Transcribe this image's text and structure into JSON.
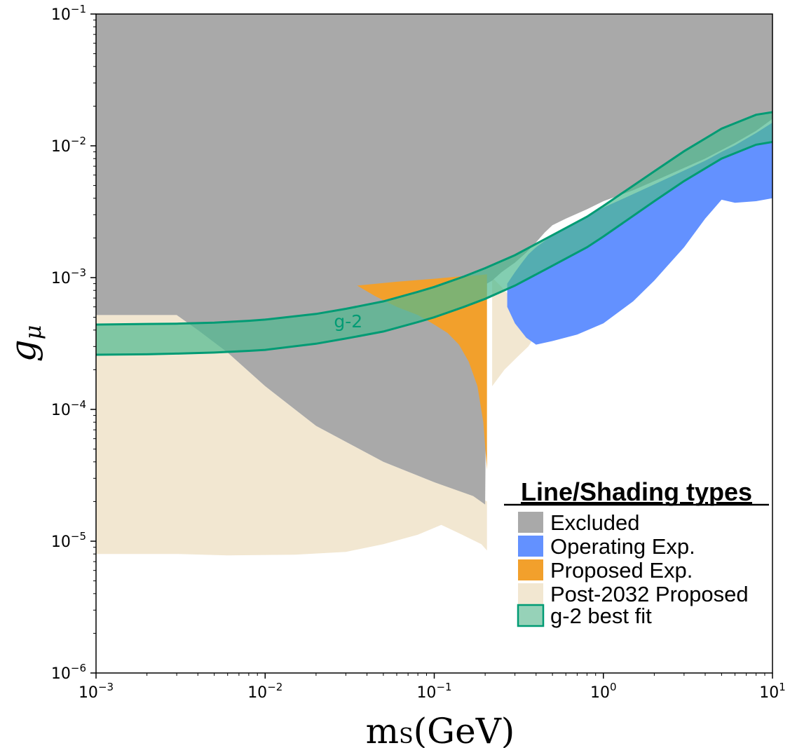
{
  "chart_data": {
    "type": "area",
    "title": "",
    "xlabel": "m",
    "xlabel_sub": "S",
    "xlabel_unit": "(GeV)",
    "ylabel": "g",
    "ylabel_sub": "μ",
    "xscale": "log",
    "yscale": "log",
    "xlim": [
      0.001,
      10
    ],
    "ylim": [
      1e-06,
      0.1
    ],
    "grid": false,
    "x_ticks": [
      {
        "base": "10",
        "exp": "−3",
        "value": 0.001
      },
      {
        "base": "10",
        "exp": "−2",
        "value": 0.01
      },
      {
        "base": "10",
        "exp": "−1",
        "value": 0.1
      },
      {
        "base": "10",
        "exp": "0",
        "value": 1
      },
      {
        "base": "10",
        "exp": "1",
        "value": 10
      }
    ],
    "y_ticks": [
      {
        "base": "10",
        "exp": "−6",
        "value": 1e-06
      },
      {
        "base": "10",
        "exp": "−5",
        "value": 1e-05
      },
      {
        "base": "10",
        "exp": "−4",
        "value": 0.0001
      },
      {
        "base": "10",
        "exp": "−3",
        "value": 0.001
      },
      {
        "base": "10",
        "exp": "−2",
        "value": 0.01
      },
      {
        "base": "10",
        "exp": "−1",
        "value": 0.1
      }
    ],
    "legend": {
      "title": "Line/Shading types",
      "placement": "lower-right",
      "entries": [
        {
          "label": "Excluded",
          "color": "#a9a9a9",
          "outline": ""
        },
        {
          "label": "Operating Exp.",
          "color": "#6391ff",
          "outline": ""
        },
        {
          "label": "Proposed Exp.",
          "color": "#f2a02c",
          "outline": ""
        },
        {
          "label": "Post-2032 Proposed",
          "color": "#f2e7d1",
          "outline": ""
        },
        {
          "label": "g-2 best fit",
          "color": "#96d2b8",
          "outline": "#009b74"
        }
      ]
    },
    "regions": [
      {
        "key": "postproposed",
        "color": "#f2e7d1",
        "opacity": 1,
        "polygons": [
          [
            [
              0.001,
              8e-06
            ],
            [
              0.003,
              8e-06
            ],
            [
              0.006,
              7.8e-06
            ],
            [
              0.015,
              7.9e-06
            ],
            [
              0.03,
              8.3e-06
            ],
            [
              0.05,
              9.5e-06
            ],
            [
              0.08,
              1.12e-05
            ],
            [
              0.11,
              1.33e-05
            ],
            [
              0.14,
              1.15e-05
            ],
            [
              0.19,
              9.5e-06
            ],
            [
              0.205,
              8.5e-06
            ],
            [
              0.205,
              2e-05
            ],
            [
              0.17,
              2.3e-05
            ],
            [
              0.1,
              2.8e-05
            ],
            [
              0.05,
              4e-05
            ],
            [
              0.02,
              7.5e-05
            ],
            [
              0.01,
              0.00015
            ],
            [
              0.006,
              0.00027
            ],
            [
              0.004,
              0.0004
            ],
            [
              0.003,
              0.00052
            ],
            [
              0.001,
              0.00052
            ]
          ],
          [
            [
              0.22,
              0.00015
            ],
            [
              0.26,
              0.0002
            ],
            [
              0.31,
              0.00025
            ],
            [
              0.36,
              0.0003
            ],
            [
              0.4,
              0.00037
            ],
            [
              0.36,
              0.00048
            ],
            [
              0.3,
              0.00065
            ],
            [
              0.25,
              0.00085
            ],
            [
              0.22,
              0.001
            ]
          ]
        ]
      },
      {
        "key": "excluded",
        "color": "#a9a9a9",
        "opacity": 1,
        "polygons": [
          [
            [
              0.001,
              0.1
            ],
            [
              10,
              0.1
            ],
            [
              10,
              0.016
            ],
            [
              8,
              0.013
            ],
            [
              6,
              0.0105
            ],
            [
              4,
              0.008
            ],
            [
              3,
              0.0068
            ],
            [
              2,
              0.0054
            ],
            [
              1.5,
              0.0046
            ],
            [
              1,
              0.0038
            ],
            [
              0.8,
              0.0033
            ],
            [
              0.6,
              0.0028
            ],
            [
              0.5,
              0.0025
            ],
            [
              0.45,
              0.0022
            ],
            [
              0.4,
              0.00185
            ],
            [
              0.35,
              0.00155
            ],
            [
              0.3,
              0.0013
            ],
            [
              0.25,
              0.0011
            ],
            [
              0.22,
              0.00095
            ],
            [
              0.205,
              0.0009
            ],
            [
              0.2,
              1.9e-05
            ],
            [
              0.17,
              2.2e-05
            ],
            [
              0.1,
              2.8e-05
            ],
            [
              0.05,
              4e-05
            ],
            [
              0.02,
              7.5e-05
            ],
            [
              0.01,
              0.00015
            ],
            [
              0.006,
              0.00027
            ],
            [
              0.004,
              0.0004
            ],
            [
              0.003,
              0.00052
            ],
            [
              0.001,
              0.00052
            ]
          ]
        ]
      },
      {
        "key": "proposed",
        "color": "#f2a02c",
        "opacity": 1,
        "polygons": [
          [
            [
              0.035,
              0.00087
            ],
            [
              0.06,
              0.00093
            ],
            [
              0.1,
              0.00098
            ],
            [
              0.14,
              0.00102
            ],
            [
              0.18,
              0.00104
            ],
            [
              0.205,
              0.00106
            ],
            [
              0.205,
              3.5e-05
            ],
            [
              0.195,
              8e-05
            ],
            [
              0.18,
              0.00015
            ],
            [
              0.16,
              0.00023
            ],
            [
              0.14,
              0.00031
            ],
            [
              0.12,
              0.00038
            ],
            [
              0.1,
              0.00044
            ],
            [
              0.08,
              0.00052
            ],
            [
              0.06,
              0.0006
            ],
            [
              0.045,
              0.00072
            ]
          ]
        ]
      },
      {
        "key": "operating",
        "color": "#6391ff",
        "opacity": 1,
        "polygons": [
          [
            [
              0.27,
              0.0009
            ],
            [
              0.3,
              0.0011
            ],
            [
              0.33,
              0.0013
            ],
            [
              0.36,
              0.0015
            ],
            [
              0.4,
              0.0017
            ],
            [
              0.45,
              0.0019
            ],
            [
              0.5,
              0.0021
            ],
            [
              0.6,
              0.0024
            ],
            [
              0.8,
              0.0029
            ],
            [
              1,
              0.0034
            ],
            [
              1.5,
              0.0043
            ],
            [
              2,
              0.0051
            ],
            [
              3,
              0.0065
            ],
            [
              4,
              0.0077
            ],
            [
              5,
              0.009
            ],
            [
              6,
              0.0101
            ],
            [
              8,
              0.0125
            ],
            [
              10,
              0.015
            ],
            [
              10,
              0.004
            ],
            [
              8,
              0.0038
            ],
            [
              6,
              0.0037
            ],
            [
              5,
              0.0039
            ],
            [
              4,
              0.0028
            ],
            [
              3,
              0.0017
            ],
            [
              2,
              0.00095
            ],
            [
              1.5,
              0.00066
            ],
            [
              1,
              0.00045
            ],
            [
              0.7,
              0.00037
            ],
            [
              0.5,
              0.00033
            ],
            [
              0.4,
              0.00031
            ],
            [
              0.35,
              0.00035
            ],
            [
              0.3,
              0.00045
            ],
            [
              0.27,
              0.0006
            ]
          ]
        ]
      }
    ],
    "series": [
      {
        "key": "g2_band",
        "label": "g-2",
        "type": "band",
        "fill": "#4fb990",
        "stroke": "#009b74",
        "x": [
          0.001,
          0.002,
          0.003,
          0.005,
          0.008,
          0.01,
          0.02,
          0.03,
          0.05,
          0.08,
          0.1,
          0.15,
          0.2,
          0.3,
          0.5,
          0.8,
          1,
          2,
          3,
          5,
          8,
          10
        ],
        "y_upper": [
          0.00044,
          0.000445,
          0.000447,
          0.000455,
          0.00047,
          0.00048,
          0.00053,
          0.00058,
          0.00066,
          0.00078,
          0.00085,
          0.00102,
          0.00118,
          0.00148,
          0.0021,
          0.0029,
          0.0035,
          0.0064,
          0.0091,
          0.0135,
          0.0172,
          0.018
        ],
        "y_lower": [
          0.00026,
          0.000262,
          0.000265,
          0.00027,
          0.000278,
          0.000283,
          0.000315,
          0.000345,
          0.00039,
          0.00046,
          0.0005,
          0.0006,
          0.00069,
          0.00087,
          0.00123,
          0.0017,
          0.00205,
          0.0038,
          0.0054,
          0.008,
          0.0102,
          0.0107
        ]
      }
    ],
    "annotations": [
      {
        "text": "g-2",
        "x": 0.031,
        "y": 0.00042,
        "color": "#009b74"
      }
    ]
  }
}
